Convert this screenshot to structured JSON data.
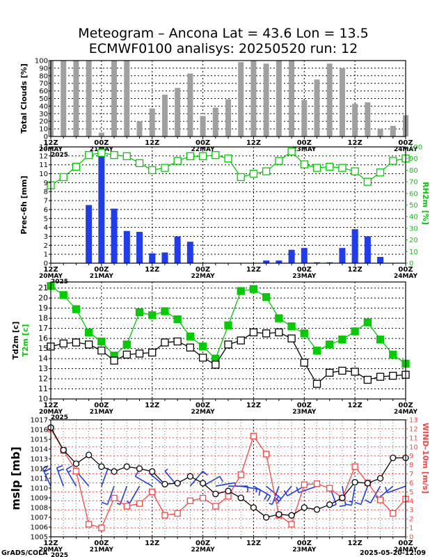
{
  "title": {
    "line1": "Meteogram – Ancona Lat = 43.6 Lon = 13.5",
    "line2": "ECMWF0100 analisys: 20250520 run: 12"
  },
  "footer": {
    "left": "GrADS/COLA",
    "right": "2025-05-20-12:09"
  },
  "time_axis": {
    "major_labels": [
      "12Z",
      "00Z",
      "12Z",
      "00Z",
      "12Z",
      "00Z",
      "12Z",
      "00Z"
    ],
    "date_labels": [
      "20MAY",
      "21MAY",
      "",
      "22MAY",
      "",
      "23MAY",
      "",
      "24MAY"
    ],
    "year_label": "2025"
  },
  "colors": {
    "cloud_bar": "#a0a0a0",
    "precip_bar": "#1f3cf0",
    "rh_line": "#00cc00",
    "t2m": "#00cc00",
    "td2m": "#000000",
    "mslp": "#000000",
    "wind": "#ff4444",
    "wind_barb": "#1f3cf0",
    "grid": "#000000",
    "vgrid_red": "#ff4444"
  },
  "chart_data": [
    {
      "id": "clouds",
      "type": "bar",
      "ylabel": "Total Clouds [%]",
      "ylim": [
        0,
        100
      ],
      "yticks": [
        0,
        10,
        20,
        30,
        40,
        50,
        60,
        70,
        80,
        90,
        100
      ],
      "grid": true,
      "x_hours": [
        0,
        3,
        6,
        9,
        12,
        15,
        18,
        21,
        24,
        27,
        30,
        33,
        36,
        39,
        42,
        45,
        48,
        51,
        54,
        57,
        60,
        63,
        66,
        69,
        72,
        75,
        78,
        81,
        84
      ],
      "values": [
        100,
        100,
        100,
        100,
        5,
        100,
        100,
        20,
        37,
        55,
        64,
        83,
        27,
        38,
        49,
        98,
        100,
        96,
        100,
        100,
        48,
        75,
        96,
        90,
        43,
        45,
        10,
        14,
        28
      ]
    },
    {
      "id": "precip_rh",
      "type": "bar+line",
      "ylabel": "Prec-6h [mm]",
      "ylabel_right": "RH2m [%]",
      "ylim": [
        0,
        13
      ],
      "ylim_right": [
        0,
        100
      ],
      "yticks": [
        0,
        1,
        2,
        3,
        4,
        5,
        6,
        7,
        8,
        9,
        10,
        11,
        12,
        13
      ],
      "yticks_right": [
        0,
        10,
        20,
        30,
        40,
        50,
        60,
        70,
        80,
        90,
        100
      ],
      "grid": true,
      "precip": {
        "x_hours": [
          9,
          12,
          15,
          18,
          21,
          24,
          27,
          30,
          33,
          36,
          39,
          42,
          45,
          48,
          51,
          54,
          57,
          60,
          63,
          66,
          69,
          72,
          75,
          78,
          81,
          84
        ],
        "values": [
          6.5,
          12.2,
          6.1,
          3.6,
          3.5,
          1.1,
          1.2,
          3.0,
          2.4,
          0,
          0,
          0,
          0,
          0,
          0.3,
          0.3,
          1.5,
          1.7,
          0.1,
          0.1,
          1.7,
          3.8,
          3.0,
          0.7,
          0,
          0
        ]
      },
      "rh": {
        "x_hours": [
          0,
          3,
          6,
          9,
          12,
          15,
          18,
          21,
          24,
          27,
          30,
          33,
          36,
          39,
          42,
          45,
          48,
          51,
          54,
          57,
          60,
          63,
          66,
          69,
          72,
          75,
          78,
          81,
          84
        ],
        "values": [
          67,
          74,
          83,
          93,
          95,
          93,
          92,
          86,
          80,
          82,
          88,
          92,
          92,
          93,
          90,
          74,
          77,
          79,
          88,
          96,
          85,
          82,
          83,
          82,
          79,
          70,
          78,
          88,
          90
        ]
      }
    },
    {
      "id": "temperature",
      "type": "line",
      "ylabel": "Td2m [c]",
      "ylabel2": "T2m [c]",
      "ylim": [
        10,
        21.6
      ],
      "yticks": [
        10,
        11,
        12,
        13,
        14,
        15,
        16,
        17,
        18,
        19,
        20,
        21
      ],
      "grid": true,
      "series": [
        {
          "name": "T2m [c]",
          "x_hours": [
            0,
            3,
            6,
            9,
            12,
            15,
            18,
            21,
            24,
            27,
            30,
            33,
            36,
            39,
            42,
            45,
            48,
            51,
            54,
            57,
            60,
            63,
            66,
            69,
            72,
            75,
            78,
            81,
            84
          ],
          "values": [
            21.2,
            20.3,
            18.9,
            16.6,
            15.7,
            14.3,
            15.4,
            18.6,
            18.3,
            18.7,
            17.9,
            16.2,
            15.2,
            14.0,
            17.3,
            20.7,
            20.9,
            20.1,
            18.0,
            17.2,
            16.5,
            14.8,
            15.4,
            15.9,
            16.7,
            17.6,
            15.9,
            14.4,
            13.5
          ]
        },
        {
          "name": "Td2m [c]",
          "x_hours": [
            0,
            3,
            6,
            9,
            12,
            15,
            18,
            21,
            24,
            27,
            30,
            33,
            36,
            39,
            42,
            45,
            48,
            51,
            54,
            57,
            60,
            63,
            66,
            69,
            72,
            75,
            78,
            81,
            84
          ],
          "values": [
            15.2,
            15.5,
            15.6,
            15.4,
            14.8,
            13.8,
            14.4,
            14.5,
            14.6,
            15.6,
            15.7,
            15.1,
            14.1,
            13.4,
            15.4,
            15.8,
            16.6,
            16.5,
            16.6,
            16.0,
            13.6,
            11.5,
            12.6,
            12.8,
            12.7,
            11.9,
            12.2,
            12.3,
            12.4
          ]
        }
      ]
    },
    {
      "id": "mslp_wind",
      "type": "line",
      "ylabel": "mslp [mb]",
      "ylabel_right": "WIND-10m [m/s]",
      "ylim": [
        1005,
        1017
      ],
      "ylim_right": [
        0,
        13
      ],
      "yticks": [
        1005,
        1006,
        1007,
        1008,
        1009,
        1010,
        1011,
        1012,
        1013,
        1014,
        1015,
        1016,
        1017
      ],
      "yticks_right": [
        0,
        1,
        2,
        3,
        4,
        5,
        6,
        7,
        8,
        9,
        10,
        11,
        12,
        13
      ],
      "grid": true,
      "mslp": {
        "x_hours": [
          0,
          3,
          6,
          9,
          12,
          15,
          18,
          21,
          24,
          27,
          30,
          33,
          36,
          39,
          42,
          45,
          48,
          51,
          54,
          57,
          60,
          63,
          66,
          69,
          72,
          75,
          78,
          81,
          84
        ],
        "values": [
          1016.2,
          1013.9,
          1012.5,
          1013.4,
          1012.2,
          1011.7,
          1012.2,
          1012.0,
          1011.7,
          1010.4,
          1010.5,
          1011.2,
          1010.5,
          1009.4,
          1009.7,
          1009.0,
          1008.0,
          1007.0,
          1007.3,
          1007.2,
          1008.0,
          1007.8,
          1008.3,
          1009.0,
          1010.6,
          1010.5,
          1011.0,
          1013.1,
          1013.1
        ]
      },
      "wind": {
        "x_hours": [
          0,
          3,
          6,
          9,
          12,
          15,
          18,
          21,
          24,
          27,
          30,
          33,
          36,
          39,
          42,
          45,
          48,
          51,
          54,
          57,
          60,
          63,
          66,
          69,
          72,
          75,
          78,
          81,
          84
        ],
        "values": [
          12.0,
          9.6,
          7.3,
          1.4,
          1.0,
          4.3,
          3.4,
          3.7,
          5.0,
          2.4,
          2.6,
          4.0,
          4.3,
          3.4,
          4.5,
          6.9,
          11.2,
          9.2,
          2.4,
          1.4,
          5.8,
          5.9,
          5.4,
          4.3,
          7.8,
          6.0,
          4.1,
          2.6,
          4.2
        ]
      },
      "barbs": {
        "x_hours": [
          0,
          3,
          6,
          9,
          12,
          15,
          18,
          21,
          24,
          27,
          30,
          33,
          36,
          39,
          42,
          45,
          48,
          51,
          54,
          57,
          60,
          63,
          66,
          69,
          72,
          75,
          78,
          81,
          84
        ],
        "speeds_m_s": [
          12.0,
          9.6,
          7.3,
          1.4,
          1.0,
          4.3,
          3.4,
          3.7,
          5.0,
          2.4,
          2.6,
          4.0,
          4.3,
          3.4,
          4.5,
          6.9,
          11.2,
          9.2,
          2.4,
          1.4,
          5.8,
          5.9,
          5.4,
          4.3,
          7.8,
          6.0,
          4.1,
          2.6,
          4.2
        ],
        "directions_deg": [
          335,
          340,
          330,
          320,
          20,
          200,
          200,
          210,
          300,
          310,
          320,
          40,
          60,
          80,
          90,
          100,
          120,
          130,
          200,
          220,
          240,
          250,
          160,
          170,
          190,
          200,
          210,
          230,
          250
        ]
      }
    }
  ]
}
